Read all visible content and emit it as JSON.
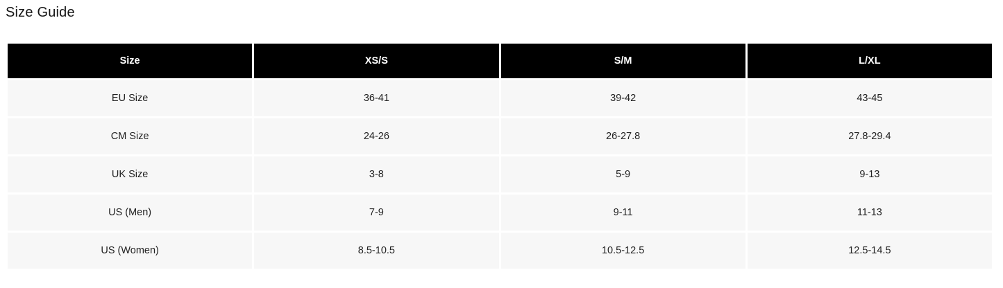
{
  "page": {
    "title": "Size Guide"
  },
  "table": {
    "columns": [
      "Size",
      "XS/S",
      "S/M",
      "L/XL"
    ],
    "rows": [
      {
        "label": "EU Size",
        "values": [
          "36-41",
          "39-42",
          "43-45"
        ]
      },
      {
        "label": "CM Size",
        "values": [
          "24-26",
          "26-27.8",
          "27.8-29.4"
        ]
      },
      {
        "label": "UK Size",
        "values": [
          "3-8",
          "5-9",
          "9-13"
        ]
      },
      {
        "label": "US (Men)",
        "values": [
          "7-9",
          "9-11",
          "11-13"
        ]
      },
      {
        "label": "US (Women)",
        "values": [
          "8.5-10.5",
          "10.5-12.5",
          "12.5-14.5"
        ]
      }
    ],
    "colors": {
      "header_bg": "#000000",
      "header_text": "#ffffff",
      "row_bg": "#f7f7f7",
      "cell_text": "#212121",
      "gap": "#ffffff"
    }
  }
}
